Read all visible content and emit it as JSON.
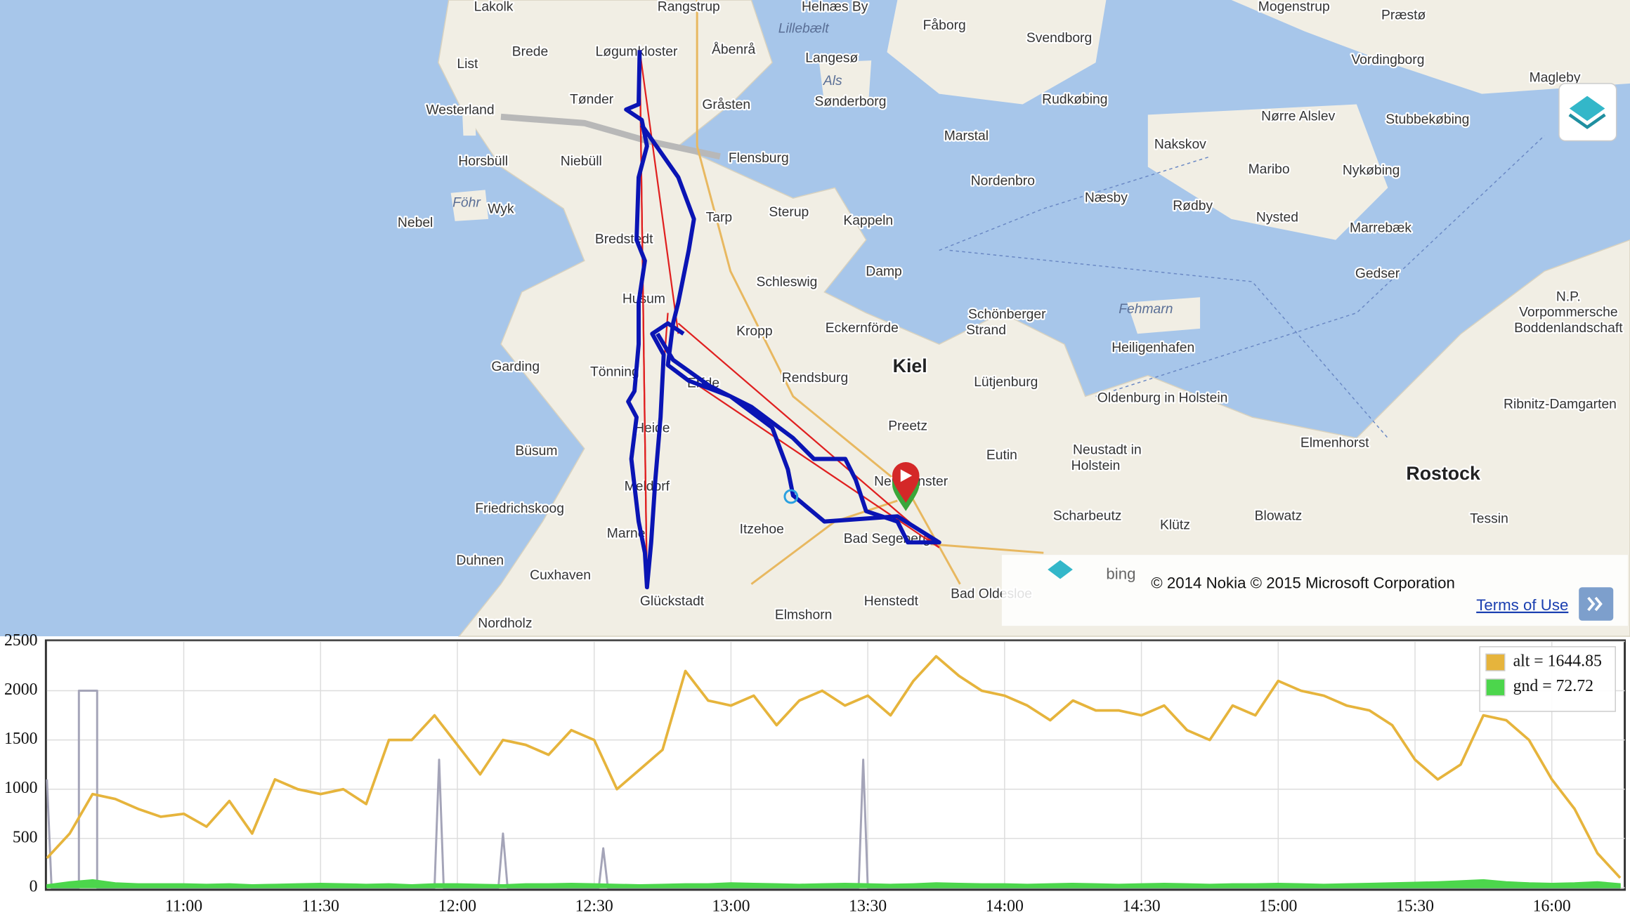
{
  "map": {
    "labels": [
      "Lakolk",
      "Rangstrup",
      "Helnæs By",
      "Mogenstrup",
      "Præstø",
      "Lillebælt",
      "Fåborg",
      "Svendborg",
      "Brede",
      "Løgumkloster",
      "Åbenrå",
      "Langesø",
      "Vordingborg",
      "List",
      "Als",
      "Magleby",
      "Tønder",
      "Gråsten",
      "Sønderborg",
      "Rudkøbing",
      "Westerland",
      "Nørre Alslev",
      "Stubbekøbing",
      "Marstal",
      "Nakskov",
      "Horsbüll",
      "Niebüll",
      "Flensburg",
      "Maribo",
      "Nykøbing",
      "Nordenbro",
      "Næsby",
      "Rødby",
      "Föhr",
      "Wyk",
      "Tarp",
      "Sterup",
      "Kappeln",
      "Nysted",
      "Marrebæk",
      "Nebel",
      "Bredstedt",
      "Schleswig",
      "Damp",
      "Gedser",
      "N.P.",
      "Vorpommersche",
      "Boddenlandschaft",
      "Husum",
      "Fehmarn",
      "Schönberger",
      "Strand",
      "Kropp",
      "Eckernförde",
      "Heiligenhafen",
      "Garding",
      "Kiel",
      "Tönning",
      "Rendsburg",
      "Lütjenburg",
      "Erfde",
      "Oldenburg in Holstein",
      "Ribnitz-Damgarten",
      "Preetz",
      "Heide",
      "Büsum",
      "Eutin",
      "Neustadt in",
      "Holstein",
      "Elmenhorst",
      "Rostock",
      "Neumünster",
      "Friedrichskoog",
      "Meldorf",
      "Scharbeutz",
      "Blowatz",
      "Tessin",
      "Klütz",
      "Itzehoe",
      "Marne",
      "Bad Segeberg",
      "Duhnen",
      "Cuxhaven",
      "Henstedt",
      "Elmshorn",
      "Glückstadt",
      "Bad Oldesloe",
      "Nordholz"
    ],
    "brand": "bing",
    "attribution": "© 2014 Nokia © 2015 Microsoft Corporation",
    "terms": "Terms of Use"
  },
  "chart_data": {
    "type": "line",
    "x": [
      "10:30",
      "10:35",
      "10:40",
      "10:45",
      "10:50",
      "10:55",
      "11:00",
      "11:05",
      "11:10",
      "11:15",
      "11:20",
      "11:25",
      "11:30",
      "11:35",
      "11:40",
      "11:45",
      "11:50",
      "11:55",
      "12:00",
      "12:05",
      "12:10",
      "12:15",
      "12:20",
      "12:25",
      "12:30",
      "12:35",
      "12:40",
      "12:45",
      "12:50",
      "12:55",
      "13:00",
      "13:05",
      "13:10",
      "13:15",
      "13:20",
      "13:25",
      "13:30",
      "13:35",
      "13:40",
      "13:45",
      "13:50",
      "13:55",
      "14:00",
      "14:05",
      "14:10",
      "14:15",
      "14:20",
      "14:25",
      "14:30",
      "14:35",
      "14:40",
      "14:45",
      "14:50",
      "14:55",
      "15:00",
      "15:05",
      "15:10",
      "15:15",
      "15:20",
      "15:25",
      "15:30",
      "15:35",
      "15:40",
      "15:45",
      "15:50",
      "15:55",
      "16:00",
      "16:05",
      "16:10",
      "16:15"
    ],
    "series": [
      {
        "name": "alt = 1644.85",
        "color": "#e6b43c",
        "values": [
          300,
          550,
          950,
          900,
          800,
          720,
          750,
          620,
          880,
          550,
          1100,
          1000,
          950,
          1000,
          850,
          1500,
          1500,
          1750,
          1450,
          1150,
          1500,
          1450,
          1350,
          1600,
          1500,
          1000,
          1200,
          1400,
          2200,
          1900,
          1850,
          1950,
          1650,
          1900,
          2000,
          1850,
          1950,
          1750,
          2100,
          2350,
          2150,
          2000,
          1950,
          1850,
          1700,
          1900,
          1800,
          1800,
          1750,
          1850,
          1600,
          1500,
          1850,
          1750,
          2100,
          2000,
          1950,
          1850,
          1800,
          1650,
          1300,
          1100,
          1250,
          1750,
          1700,
          1500,
          1100,
          800,
          350,
          100
        ]
      },
      {
        "name": "gnd = 72.72",
        "color": "#4cd64c",
        "values": [
          30,
          60,
          80,
          50,
          40,
          40,
          40,
          35,
          40,
          30,
          35,
          40,
          45,
          40,
          35,
          40,
          30,
          40,
          40,
          35,
          30,
          40,
          40,
          45,
          40,
          35,
          30,
          35,
          40,
          40,
          50,
          45,
          40,
          35,
          40,
          45,
          40,
          35,
          40,
          50,
          45,
          40,
          40,
          35,
          40,
          45,
          40,
          35,
          40,
          45,
          40,
          35,
          40,
          40,
          45,
          40,
          35,
          40,
          45,
          50,
          55,
          60,
          70,
          80,
          60,
          50,
          45,
          50,
          60,
          40
        ]
      },
      {
        "color": "#a4a4b8",
        "x": [
          "10:30",
          "10:31",
          "10:37",
          "10:37",
          "10:41",
          "10:41",
          "11:55",
          "11:56",
          "11:57",
          "12:09",
          "12:10",
          "12:11",
          "12:31",
          "12:32",
          "12:33",
          "13:28",
          "13:29",
          "13:30",
          "16:15"
        ],
        "values": [
          1100,
          0,
          0,
          2000,
          2000,
          0,
          0,
          1300,
          0,
          0,
          550,
          0,
          0,
          400,
          0,
          0,
          1300,
          0,
          0
        ]
      }
    ],
    "xlim": [
      "10:30",
      "16:16"
    ],
    "xticks": [
      "11:00",
      "11:30",
      "12:00",
      "12:30",
      "13:00",
      "13:30",
      "14:00",
      "14:30",
      "15:00",
      "15:30",
      "16:00"
    ],
    "ylim": [
      0,
      2500
    ],
    "yticks": [
      0,
      500,
      1000,
      1500,
      2000,
      2500
    ],
    "grid": true
  }
}
